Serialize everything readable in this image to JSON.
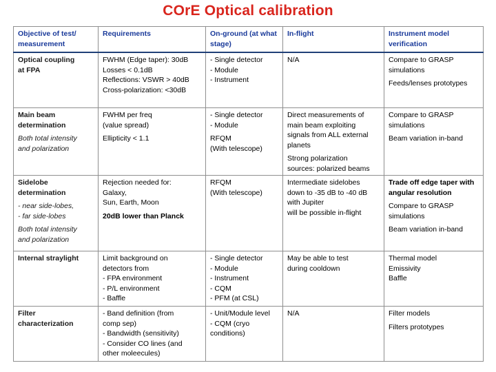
{
  "title": "COrE Optical calibration",
  "headers": {
    "objective": [
      "Objective of test/",
      "measurement"
    ],
    "requirements": [
      "Requirements"
    ],
    "on_ground": [
      "On-ground",
      "(at what stage)"
    ],
    "in_flight": [
      "In-flight"
    ],
    "model": [
      "Instrument model",
      "verification"
    ]
  },
  "rows": [
    {
      "objective": {
        "title": [
          "Optical coupling",
          "at FPA"
        ],
        "notes": []
      },
      "requirements": [
        [
          "FWHM (Edge taper): 30dB",
          "Losses < 0.1dB",
          "Reflections: VSWR > 40dB",
          "Cross-polarization: <30dB"
        ]
      ],
      "on_ground": [
        [
          "- Single detector",
          "- Module",
          "- Instrument"
        ]
      ],
      "in_flight": [
        [
          "N/A"
        ]
      ],
      "model": [
        [
          "Compare to GRASP",
          "simulations"
        ],
        [
          "Feeds/lenses prototypes"
        ]
      ]
    },
    {
      "objective": {
        "title": [
          "Main beam",
          "determination"
        ],
        "notes": [
          [
            "Both total intensity",
            "and polarization"
          ]
        ]
      },
      "requirements": [
        [
          "FWHM per freq",
          "(value spread)"
        ],
        [
          "Ellipticity < 1.1"
        ]
      ],
      "on_ground": [
        [
          "- Single detector",
          "- Module"
        ],
        [
          "RFQM",
          "(With telescope)"
        ]
      ],
      "in_flight": [
        [
          "Direct measurements of",
          "main beam exploiting",
          "signals from ALL external",
          "planets"
        ],
        [
          "Strong polarization",
          "sources: polarized beams"
        ]
      ],
      "model": [
        [
          "Compare to GRASP",
          "simulations"
        ],
        [
          "Beam variation in-band"
        ]
      ]
    },
    {
      "objective": {
        "title": [
          "Sidelobe",
          "determination"
        ],
        "notes": [
          [
            "- near side-lobes,",
            "- far side-lobes"
          ],
          [
            "Both total intensity",
            "and polarization"
          ]
        ]
      },
      "requirements": [
        [
          "Rejection needed for:",
          "Galaxy,",
          "Sun, Earth, Moon"
        ],
        [
          "20dB lower than Planck"
        ]
      ],
      "on_ground": [
        [
          "RFQM",
          "(With telescope)"
        ]
      ],
      "in_flight": [
        [
          "Intermediate sidelobes",
          "down to -35 dB to -40 dB",
          "with Jupiter",
          "will be possible in-flight"
        ]
      ],
      "model": [
        [
          "Trade off edge taper with",
          "angular resolution"
        ],
        [
          "Compare to GRASP",
          "simulations"
        ],
        [
          "Beam variation in-band"
        ]
      ]
    },
    {
      "objective": {
        "title": [
          "Internal straylight"
        ],
        "notes": []
      },
      "requirements": [
        [
          "Limit background on",
          "detectors from",
          "- FPA environment",
          "- P/L environment",
          "- Baffle"
        ]
      ],
      "on_ground": [
        [
          "- Single detector",
          "- Module",
          "- Instrument",
          "- CQM",
          "- PFM (at CSL)"
        ]
      ],
      "in_flight": [
        [
          "May be able to test",
          "during cooldown"
        ]
      ],
      "model": [
        [
          "Thermal model",
          "Emissivity",
          "Baffle"
        ]
      ]
    },
    {
      "objective": {
        "title": [
          "Filter",
          "characterization"
        ],
        "notes": []
      },
      "requirements": [
        [
          "- Band definition (from",
          "comp sep)",
          "- Bandwidth (sensitivity)",
          "- Consider CO lines (and",
          "other moleecules)"
        ]
      ],
      "on_ground": [
        [
          "- Unit/Module level",
          "- CQM (cryo",
          "conditions)"
        ]
      ],
      "in_flight": [
        [
          "N/A"
        ]
      ],
      "model": [
        [
          "Filter models"
        ],
        [
          "Filters prototypes"
        ]
      ]
    }
  ]
}
